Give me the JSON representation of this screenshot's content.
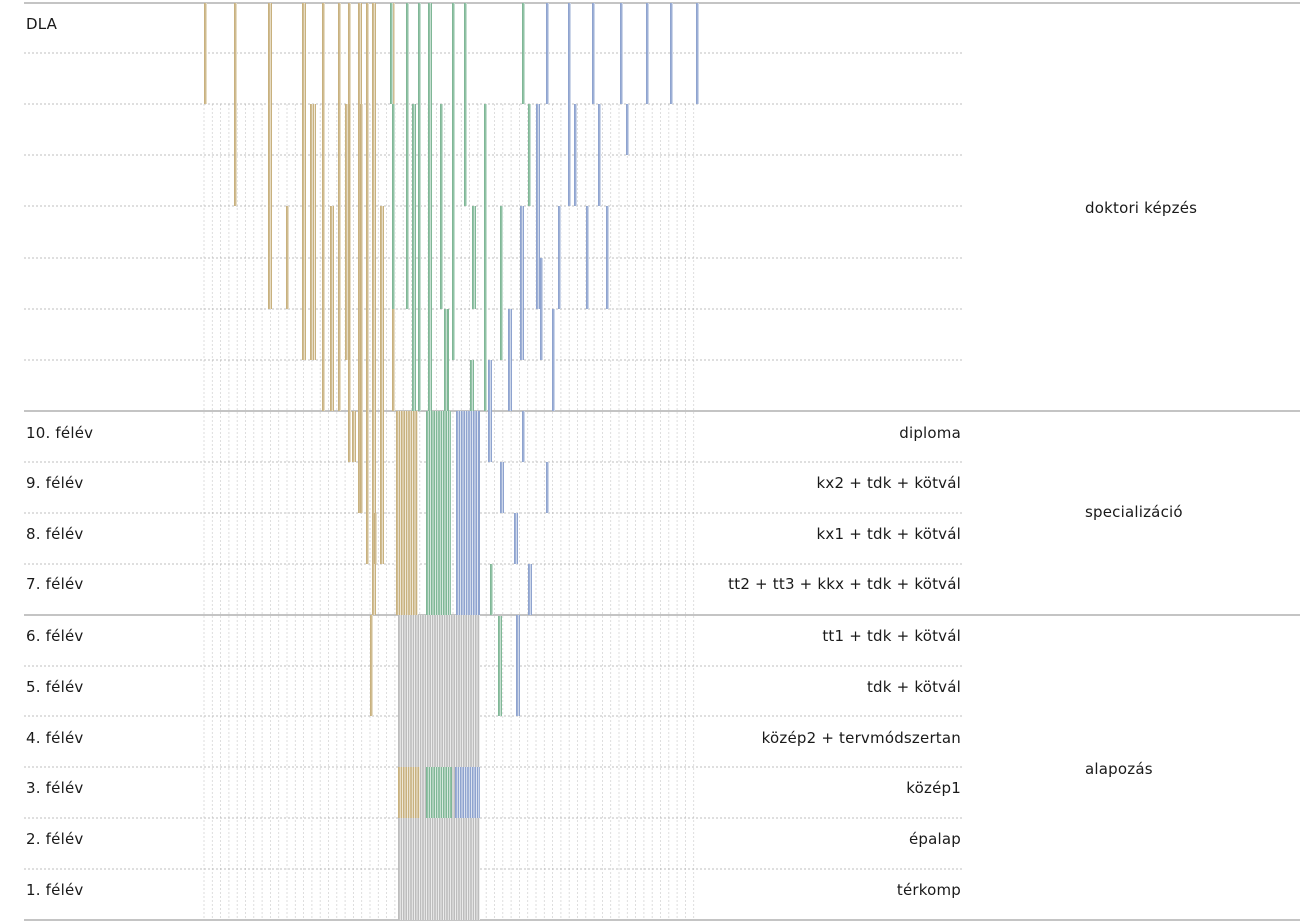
{
  "colors": {
    "tan": "#c8b17e",
    "green": "#7fb796",
    "blue": "#8ea3cf",
    "grey": "#bdbdbd",
    "stroke": "#ffffff",
    "rule_solid": "#888888",
    "rule_dotted": "#aaaaaa",
    "guide": "#d6d6d6"
  },
  "top_label": "DLA",
  "semester_rows": [
    {
      "semester": "10. félév",
      "course": "diploma"
    },
    {
      "semester": "9. félév",
      "course": "kx2 + tdk + kötvál"
    },
    {
      "semester": "8. félév",
      "course": "kx1 + tdk + kötvál"
    },
    {
      "semester": "7. félév",
      "course": "tt2 + tt3 + kkx + tdk + kötvál"
    },
    {
      "semester": "6. félév",
      "course": "tt1 + tdk + kötvál"
    },
    {
      "semester": "5. félév",
      "course": "tdk + kötvál"
    },
    {
      "semester": "4. félév",
      "course": "közép2 + tervmódszertan"
    },
    {
      "semester": "3. félév",
      "course": "közép1"
    },
    {
      "semester": "2. félév",
      "course": "épalap"
    },
    {
      "semester": "1. félév",
      "course": "térkomp"
    }
  ],
  "phases": [
    {
      "name": "doktori képzés"
    },
    {
      "name": "specializáció"
    },
    {
      "name": "alapozás"
    }
  ]
}
